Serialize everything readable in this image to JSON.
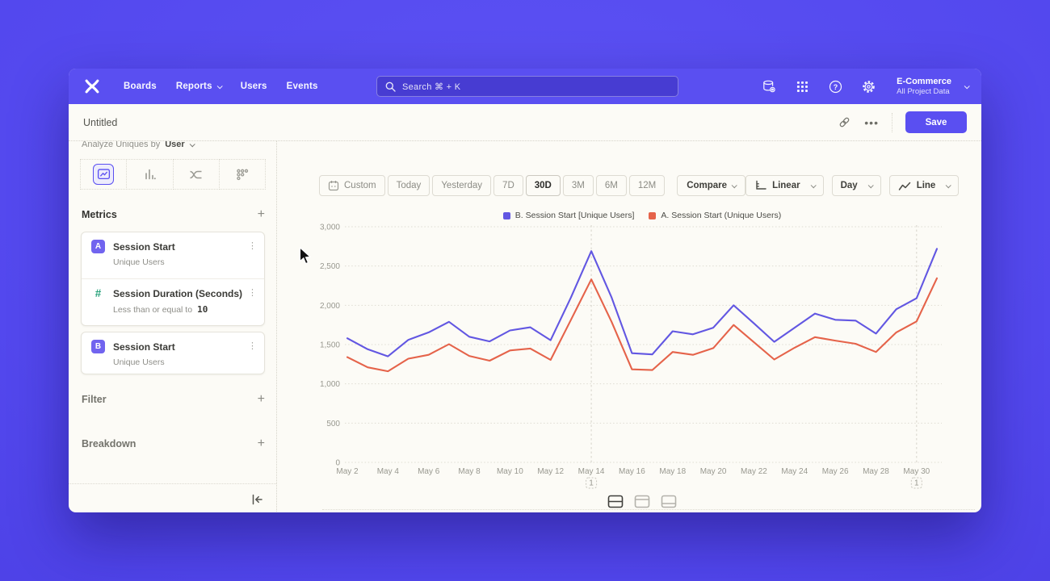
{
  "nav": {
    "items": [
      "Boards",
      "Reports",
      "Users",
      "Events"
    ],
    "search": {
      "placeholder": "Search  ⌘ + K"
    },
    "project": {
      "name": "E-Commerce",
      "sub": "All Project Data"
    }
  },
  "header": {
    "title": "Untitled",
    "save_label": "Save"
  },
  "sidebar": {
    "analyze_label": "Analyze Uniques by",
    "analyze_value": "User",
    "metrics_title": "Metrics",
    "metrics": [
      {
        "badge": "A",
        "name": "Session Start",
        "sub": "Unique Users"
      },
      {
        "badge": "#",
        "name": "Session Duration (Seconds)",
        "sub": "Less than or equal to",
        "sub_value": "10"
      },
      {
        "badge": "B",
        "name": "Session Start",
        "sub": "Unique Users"
      }
    ],
    "sections": [
      {
        "label": "Filter"
      },
      {
        "label": "Breakdown"
      }
    ]
  },
  "toolbar": {
    "ranges": [
      "Custom",
      "Today",
      "Yesterday",
      "7D",
      "30D",
      "3M",
      "6M",
      "12M"
    ],
    "active_range": "30D",
    "compare_label": "Compare",
    "scale_label": "Linear",
    "interval_label": "Day",
    "chart_type_label": "Line"
  },
  "chart_data": {
    "type": "line",
    "x": [
      "May 2",
      "May 3",
      "May 4",
      "May 5",
      "May 6",
      "May 7",
      "May 8",
      "May 9",
      "May 10",
      "May 11",
      "May 12",
      "May 13",
      "May 14",
      "May 15",
      "May 16",
      "May 17",
      "May 18",
      "May 19",
      "May 20",
      "May 21",
      "May 22",
      "May 23",
      "May 24",
      "May 25",
      "May 26",
      "May 27",
      "May 28",
      "May 29",
      "May 30",
      "May 31"
    ],
    "x_tick_every": 2,
    "series": [
      {
        "name": "B. Session Start [Unique Users]",
        "color": "#6257e2",
        "values": [
          1580,
          1440,
          1350,
          1560,
          1655,
          1790,
          1600,
          1540,
          1680,
          1720,
          1555,
          2100,
          2690,
          2100,
          1390,
          1375,
          1670,
          1630,
          1715,
          2000,
          1770,
          1535,
          1715,
          1895,
          1815,
          1805,
          1640,
          1950,
          2090,
          2720
        ]
      },
      {
        "name": "A. Session Start (Unique Users)",
        "color": "#e5634a",
        "values": [
          1340,
          1210,
          1160,
          1320,
          1370,
          1505,
          1355,
          1295,
          1425,
          1450,
          1305,
          1815,
          2330,
          1790,
          1185,
          1175,
          1405,
          1370,
          1455,
          1750,
          1530,
          1310,
          1460,
          1595,
          1550,
          1510,
          1405,
          1655,
          1795,
          2345
        ]
      }
    ],
    "ylim": [
      0,
      3000
    ],
    "ytick_step": 500,
    "grid": "horizontal-dotted",
    "legend_position": "top-center",
    "annotations": [
      {
        "x": "May 14",
        "label": "1"
      },
      {
        "x": "May 30",
        "label": "1"
      }
    ]
  }
}
